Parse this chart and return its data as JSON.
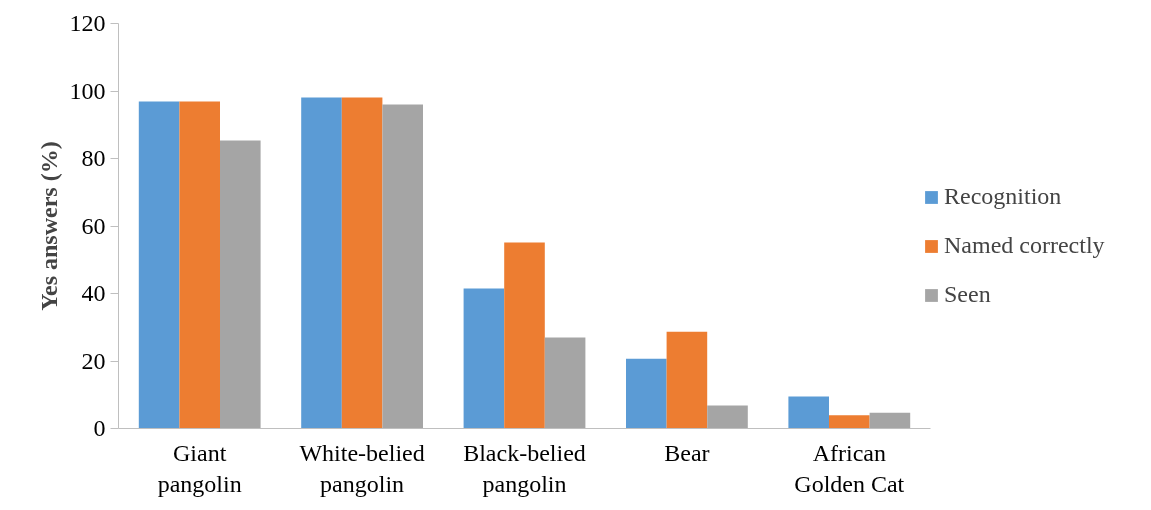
{
  "chart_data": {
    "type": "bar",
    "ylabel": "Yes answers (%)",
    "categories": [
      "Giant pangolin",
      "White-belied pangolin",
      "Black-belied pangolin",
      "Bear",
      "African Golden Cat"
    ],
    "series": [
      {
        "name": "Recognition",
        "color": "#5b9bd5",
        "values": [
          96.9,
          98.1,
          41.5,
          20.7,
          9.5
        ]
      },
      {
        "name": "Named correctly",
        "color": "#ed7d31",
        "values": [
          96.9,
          98.1,
          55.1,
          28.7,
          3.9
        ]
      },
      {
        "name": "Seen",
        "color": "#a5a5a5",
        "values": [
          85.3,
          96.0,
          27.0,
          6.8,
          4.7
        ]
      }
    ],
    "ylim": [
      0,
      120
    ],
    "yticks": [
      0,
      20,
      40,
      60,
      80,
      100,
      120
    ],
    "grid": false,
    "legend": "right"
  }
}
